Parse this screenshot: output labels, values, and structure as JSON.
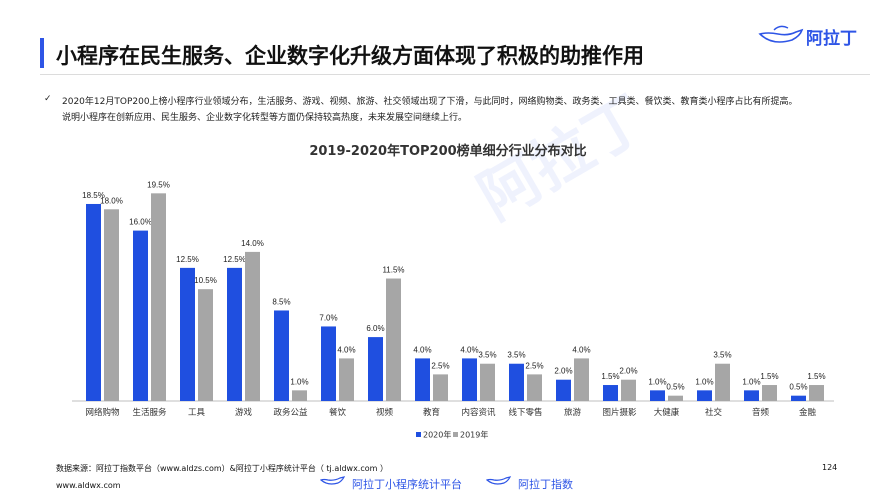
{
  "header": {
    "title": "小程序在民生服务、企业数字化升级方面体现了积极的助推作用",
    "logo_text": "阿拉丁"
  },
  "description": {
    "check_mark": "✓",
    "line1": "2020年12月TOP200上榜小程序行业领域分布，生活服务、游戏、视频、旅游、社交领域出现了下滑，与此同时，网络购物类、政务类、工具类、餐饮类、教育类小程序占比有所提高。",
    "line2": "说明小程序在创新应用、民生服务、企业数字化转型等方面仍保持较高热度，未来发展空间继续上行。"
  },
  "watermark": "阿拉丁",
  "chart_data": {
    "type": "bar",
    "title": "2019-2020年TOP200榜单细分行业分布对比",
    "categories": [
      "网络购物",
      "生活服务",
      "工具",
      "游戏",
      "政务公益",
      "餐饮",
      "视频",
      "教育",
      "内容资讯",
      "线下零售",
      "旅游",
      "图片摄影",
      "大健康",
      "社交",
      "音频",
      "金融"
    ],
    "series": [
      {
        "name": "2020年",
        "color": "#1F4FE0",
        "values": [
          18.5,
          16.0,
          12.5,
          12.5,
          8.5,
          7.0,
          6.0,
          4.0,
          4.0,
          3.5,
          2.0,
          1.5,
          1.0,
          1.0,
          1.0,
          0.5
        ]
      },
      {
        "name": "2019年",
        "color": "#A6A6A6",
        "values": [
          18.0,
          19.5,
          10.5,
          14.0,
          1.0,
          4.0,
          11.5,
          2.5,
          3.5,
          2.5,
          4.0,
          2.0,
          0.5,
          3.5,
          1.5,
          1.5
        ]
      }
    ],
    "value_labels": {
      "2020年": [
        "18.5%",
        "16.0%",
        "12.5%",
        "12.5%",
        "8.5%",
        "7.0%",
        "6.0%",
        "4.0%",
        "4.0%",
        "3.5%",
        "2.0%",
        "1.5%",
        "1.0%",
        "1.0%",
        "1.0%",
        "0.5%"
      ],
      "2019年": [
        "18.0%",
        "19.5%",
        "10.5%",
        "14.0%",
        "1.0%",
        "4.0%",
        "11.5%",
        "2.5%",
        "3.5%",
        "2.5%",
        "4.0%",
        "2.0%",
        "0.5%",
        "3.5%",
        "1.5%",
        "1.5%"
      ]
    },
    "ylim": [
      0,
      20
    ],
    "legend_position": "bottom-center",
    "grid": false
  },
  "footer": {
    "source": "数据来源：阿拉丁指数平台（www.aldzs.com）&阿拉丁小程序统计平台（ tj.aldwx.com ）",
    "url": "www.aldwx.com",
    "page_number": "124",
    "brand1": "阿拉丁小程序统计平台",
    "brand2": "阿拉丁指数"
  }
}
